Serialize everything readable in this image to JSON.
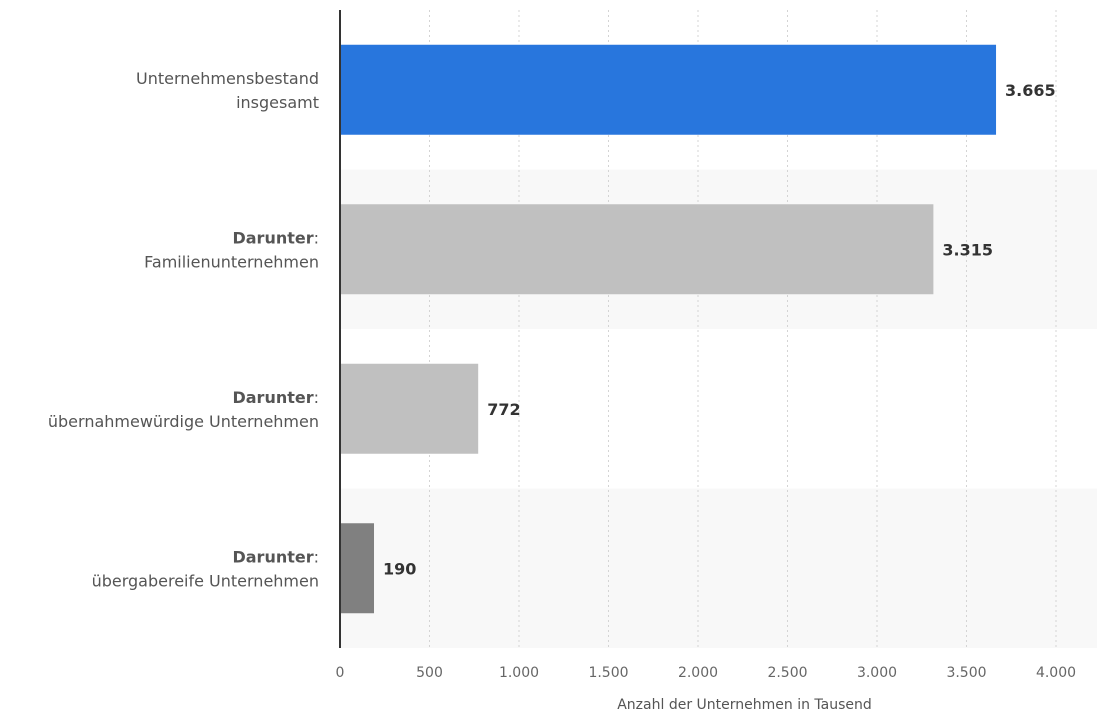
{
  "chart_data": {
    "type": "bar",
    "orientation": "horizontal",
    "categories": [
      {
        "prefix": "",
        "label": "Unternehmensbestand insgesamt",
        "lines": [
          "Unternehmensbestand",
          "insgesamt"
        ]
      },
      {
        "prefix": "Darunter",
        "label": "Familienunternehmen",
        "lines": [
          "Familienunternehmen"
        ]
      },
      {
        "prefix": "Darunter",
        "label": "übernahmewürdige Unternehmen",
        "lines": [
          "übernahmewürdige Unternehmen"
        ]
      },
      {
        "prefix": "Darunter",
        "label": "übergabereife Unternehmen",
        "lines": [
          "übergabereife Unternehmen"
        ]
      }
    ],
    "values": [
      3665,
      3315,
      772,
      190
    ],
    "value_labels": [
      "3.665",
      "3.315",
      "772",
      "190"
    ],
    "colors": [
      "#2876dd",
      "#c0c0c0",
      "#c0c0c0",
      "#808080"
    ],
    "xlabel": "Anzahl der Unternehmen in Tausend",
    "ylabel": "",
    "xlim": [
      0,
      4250
    ],
    "xticks": [
      0,
      500,
      1000,
      1500,
      2000,
      2500,
      3000,
      3500,
      4000
    ],
    "xtick_labels": [
      "0",
      "500",
      "1.000",
      "1.500",
      "2.000",
      "2.500",
      "3.000",
      "3.500",
      "4.000"
    ],
    "grid": "vertical dotted",
    "legend": "none"
  }
}
